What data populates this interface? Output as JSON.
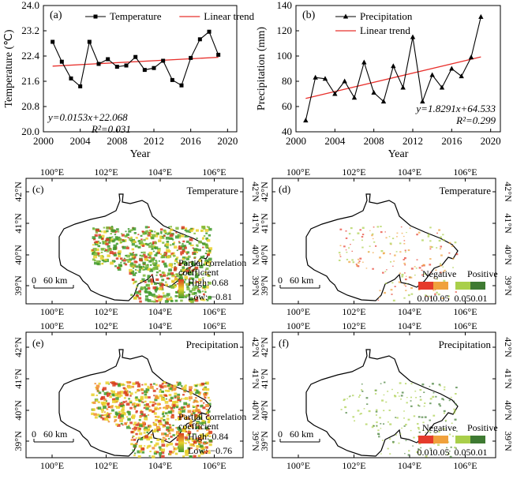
{
  "colors": {
    "series": "#000000",
    "trend": "#e8302c",
    "map_outline": "#000000",
    "high": "#d83a1e",
    "mid": "#e9d02a",
    "low": "#3f9a2c",
    "neg_strong": "#e53b2b",
    "neg_weak": "#f0a13c",
    "pos_weak": "#a9cf4a",
    "pos_strong": "#3e7a32"
  },
  "chart_data": [
    {
      "type": "line",
      "panel_label": "(a)",
      "xlabel": "Year",
      "ylabel": "Temperature (℃)",
      "xlim": [
        2000,
        2021
      ],
      "ylim": [
        20.0,
        24.0
      ],
      "xticks": [
        "2000",
        "2004",
        "2008",
        "2012",
        "2016",
        "2020"
      ],
      "yticks": [
        "20.0",
        "20.8",
        "21.6",
        "22.4",
        "23.2",
        "24.0"
      ],
      "legend_position": "top",
      "series": [
        {
          "name": "Temperature",
          "marker": "square",
          "x": [
            2001,
            2002,
            2003,
            2004,
            2005,
            2006,
            2007,
            2008,
            2009,
            2010,
            2011,
            2012,
            2013,
            2014,
            2015,
            2016,
            2017,
            2018,
            2019
          ],
          "y": [
            22.85,
            22.22,
            21.69,
            21.44,
            22.85,
            22.15,
            22.3,
            22.06,
            22.1,
            22.37,
            21.96,
            22.02,
            22.25,
            21.64,
            21.47,
            22.34,
            22.93,
            23.17,
            22.44
          ]
        },
        {
          "name": "Linear trend",
          "x": [
            2001,
            2019
          ],
          "y": [
            22.08,
            22.36
          ]
        }
      ],
      "equation": "y=0.0153x+22.068",
      "r2": "R²=0.031"
    },
    {
      "type": "line",
      "panel_label": "(b)",
      "xlabel": "Year",
      "ylabel": "Precipitation (mm)",
      "xlim": [
        2000,
        2021
      ],
      "ylim": [
        40,
        140
      ],
      "xticks": [
        "2000",
        "2004",
        "2008",
        "2012",
        "2016",
        "2020"
      ],
      "yticks": [
        "40",
        "60",
        "80",
        "100",
        "120",
        "140"
      ],
      "legend_position": "top",
      "series": [
        {
          "name": "Precipitation",
          "marker": "triangle",
          "x": [
            2001,
            2002,
            2003,
            2004,
            2005,
            2006,
            2007,
            2008,
            2009,
            2010,
            2011,
            2012,
            2013,
            2014,
            2015,
            2016,
            2017,
            2018,
            2019
          ],
          "y": [
            49,
            83,
            82,
            70,
            80,
            67,
            95,
            71,
            64,
            92,
            75,
            115,
            64,
            85,
            75,
            90,
            84,
            99,
            131
          ]
        },
        {
          "name": "Linear trend",
          "x": [
            2001,
            2019
          ],
          "y": [
            66.4,
            99.3
          ]
        }
      ],
      "equation": "y=1.8291x+64.533",
      "r2": "R²=0.299"
    }
  ],
  "maps": {
    "lon_ticks": [
      "100°E",
      "102°E",
      "104°E",
      "106°E"
    ],
    "lat_ticks": [
      "42°N",
      "41°N",
      "40°N",
      "39°N"
    ],
    "scale_bar": {
      "start": "0",
      "end": "60 km"
    },
    "panels": [
      {
        "id": "c",
        "label": "(c)",
        "title": "Temperature",
        "legend_type": "gradient",
        "legend_title": "Partial correlation coefficient",
        "high": "High: 0.68",
        "low": "Low: −0.81"
      },
      {
        "id": "d",
        "label": "(d)",
        "title": "Temperature",
        "legend_type": "classes",
        "negative": "Negative",
        "positive": "Positive",
        "class_labels": [
          "0.01",
          "0.05",
          "0.05",
          "0.01"
        ]
      },
      {
        "id": "e",
        "label": "(e)",
        "title": "Precipitation",
        "legend_type": "gradient",
        "legend_title": "Partial correlation coefficient",
        "high": "High: 0.84",
        "low": "Low: −0.76"
      },
      {
        "id": "f",
        "label": "(f)",
        "title": "Precipitation",
        "legend_type": "classes",
        "negative": "Negative",
        "positive": "Positive",
        "class_labels": [
          "0.01",
          "0.05",
          "0.05",
          "0.01"
        ]
      }
    ]
  }
}
